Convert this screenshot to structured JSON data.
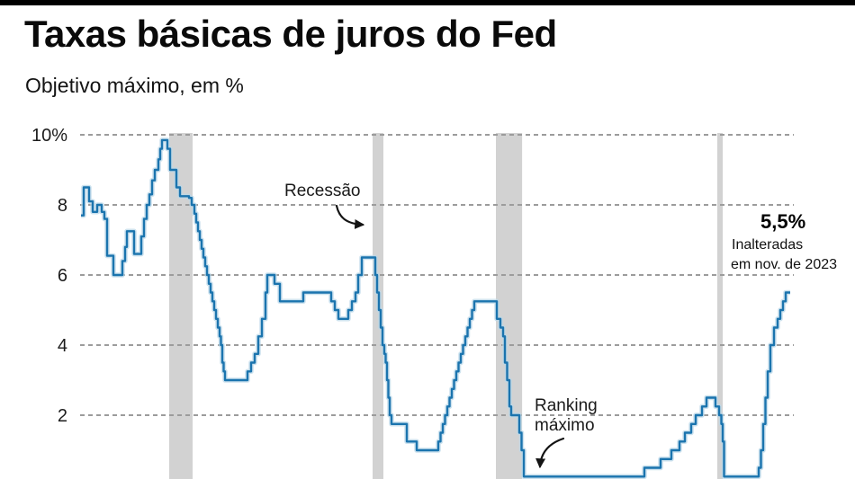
{
  "header": {
    "title": "Taxas básicas de juros do Fed",
    "subtitle": "Objetivo máximo, em %"
  },
  "annotations": {
    "recession": {
      "label": "Recessão"
    },
    "ranking": {
      "lines": [
        "Ranking",
        "máximo"
      ]
    },
    "rate_callout": {
      "value": "5,5%",
      "line1": "Inalteradas",
      "line2": "em nov. de 2023"
    }
  },
  "chart_data": {
    "type": "line",
    "subtype": "step",
    "title": "Taxas básicas de juros do Fed",
    "subtitle": "Objetivo máximo, em %",
    "ylabel": "%",
    "ylim": [
      0,
      10.5
    ],
    "grid": "horizontal dashed",
    "legend": "none",
    "x_axis_note": "time axis, no tick labels visible; t = percent of plot width (~1986 to nov. 2023)",
    "yticks": [
      {
        "v": 10,
        "label": "10%"
      },
      {
        "v": 8,
        "label": "8"
      },
      {
        "v": 6,
        "label": "6"
      },
      {
        "v": 4,
        "label": "4"
      },
      {
        "v": 2,
        "label": "2"
      }
    ],
    "colors": {
      "line": "#1b74ae",
      "line_halo": "#b9d7e8",
      "recession_band": "#d2d2d2",
      "gridline": "#9c9c9c",
      "topbar": "#000000",
      "text": "#1a1a1a"
    },
    "recession_bands_t": [
      [
        12.41,
        15.7
      ],
      [
        41.01,
        42.53
      ],
      [
        58.35,
        62.03
      ],
      [
        89.49,
        90.25
      ]
    ],
    "series": [
      {
        "name": "Taxa básica de juros do Fed (objetivo máximo, %)",
        "end_value": 5.5,
        "end_note": "Inalteradas em nov. de 2023",
        "points": [
          [
            0,
            7.7
          ],
          [
            0.38,
            8.5
          ],
          [
            1.14,
            8.1
          ],
          [
            1.65,
            7.8
          ],
          [
            2.28,
            8.0
          ],
          [
            2.91,
            7.8
          ],
          [
            3.29,
            7.6
          ],
          [
            3.67,
            6.55
          ],
          [
            4.56,
            6.0
          ],
          [
            5.82,
            6.4
          ],
          [
            6.2,
            6.8
          ],
          [
            6.46,
            7.25
          ],
          [
            7.47,
            6.6
          ],
          [
            8.48,
            7.1
          ],
          [
            8.86,
            7.6
          ],
          [
            9.24,
            8.0
          ],
          [
            9.62,
            8.3
          ],
          [
            10.0,
            8.7
          ],
          [
            10.38,
            9.0
          ],
          [
            10.89,
            9.3
          ],
          [
            11.14,
            9.6
          ],
          [
            11.39,
            9.85
          ],
          [
            12.15,
            9.6
          ],
          [
            12.53,
            9.0
          ],
          [
            13.42,
            8.5
          ],
          [
            13.92,
            8.25
          ],
          [
            15.19,
            8.2
          ],
          [
            15.57,
            8.0
          ],
          [
            15.95,
            7.75
          ],
          [
            16.2,
            7.5
          ],
          [
            16.46,
            7.25
          ],
          [
            16.71,
            7.0
          ],
          [
            16.96,
            6.75
          ],
          [
            17.22,
            6.5
          ],
          [
            17.47,
            6.25
          ],
          [
            17.72,
            6.0
          ],
          [
            17.97,
            5.75
          ],
          [
            18.23,
            5.5
          ],
          [
            18.48,
            5.25
          ],
          [
            18.73,
            5.0
          ],
          [
            18.99,
            4.75
          ],
          [
            19.24,
            4.5
          ],
          [
            19.49,
            4.25
          ],
          [
            19.68,
            4.0
          ],
          [
            19.87,
            3.5
          ],
          [
            20.06,
            3.25
          ],
          [
            20.25,
            3.0
          ],
          [
            23.42,
            3.25
          ],
          [
            23.92,
            3.5
          ],
          [
            24.43,
            3.75
          ],
          [
            24.94,
            4.25
          ],
          [
            25.44,
            4.75
          ],
          [
            25.95,
            5.5
          ],
          [
            26.2,
            6.0
          ],
          [
            27.22,
            5.75
          ],
          [
            27.97,
            5.25
          ],
          [
            31.27,
            5.5
          ],
          [
            35.19,
            5.25
          ],
          [
            35.7,
            5.0
          ],
          [
            36.2,
            4.75
          ],
          [
            37.59,
            5.0
          ],
          [
            38.1,
            5.25
          ],
          [
            38.61,
            5.5
          ],
          [
            38.99,
            6.0
          ],
          [
            39.49,
            6.5
          ],
          [
            41.39,
            6.0
          ],
          [
            41.65,
            5.5
          ],
          [
            41.9,
            5.0
          ],
          [
            42.15,
            4.5
          ],
          [
            42.41,
            4.0
          ],
          [
            42.66,
            3.75
          ],
          [
            42.85,
            3.5
          ],
          [
            43.04,
            3.0
          ],
          [
            43.23,
            2.5
          ],
          [
            43.42,
            2.0
          ],
          [
            43.67,
            1.75
          ],
          [
            45.82,
            1.25
          ],
          [
            47.22,
            1.0
          ],
          [
            50.25,
            1.25
          ],
          [
            50.57,
            1.5
          ],
          [
            50.89,
            1.75
          ],
          [
            51.2,
            2.0
          ],
          [
            51.52,
            2.25
          ],
          [
            51.84,
            2.5
          ],
          [
            52.15,
            2.75
          ],
          [
            52.47,
            3.0
          ],
          [
            52.78,
            3.25
          ],
          [
            53.1,
            3.5
          ],
          [
            53.42,
            3.75
          ],
          [
            53.73,
            4.0
          ],
          [
            54.05,
            4.25
          ],
          [
            54.37,
            4.5
          ],
          [
            54.68,
            4.75
          ],
          [
            55.0,
            5.0
          ],
          [
            55.32,
            5.25
          ],
          [
            58.48,
            4.75
          ],
          [
            58.99,
            4.5
          ],
          [
            59.37,
            4.25
          ],
          [
            59.62,
            3.5
          ],
          [
            59.94,
            3.0
          ],
          [
            60.25,
            2.25
          ],
          [
            60.51,
            2.0
          ],
          [
            61.65,
            1.5
          ],
          [
            61.96,
            1.0
          ],
          [
            62.28,
            0.25
          ],
          [
            79.24,
            0.5
          ],
          [
            81.52,
            0.75
          ],
          [
            83.04,
            1.0
          ],
          [
            84.18,
            1.25
          ],
          [
            84.94,
            1.5
          ],
          [
            85.82,
            1.75
          ],
          [
            86.46,
            2.0
          ],
          [
            87.34,
            2.25
          ],
          [
            87.97,
            2.5
          ],
          [
            89.24,
            2.25
          ],
          [
            89.75,
            2.0
          ],
          [
            90.06,
            1.75
          ],
          [
            90.25,
            1.25
          ],
          [
            90.44,
            0.25
          ],
          [
            95.32,
            0.5
          ],
          [
            95.63,
            1.0
          ],
          [
            95.95,
            1.75
          ],
          [
            96.27,
            2.5
          ],
          [
            96.58,
            3.25
          ],
          [
            96.96,
            4.0
          ],
          [
            97.47,
            4.5
          ],
          [
            97.97,
            4.75
          ],
          [
            98.35,
            5.0
          ],
          [
            98.73,
            5.25
          ],
          [
            99.11,
            5.5
          ],
          [
            99.75,
            5.5
          ]
        ]
      }
    ]
  }
}
